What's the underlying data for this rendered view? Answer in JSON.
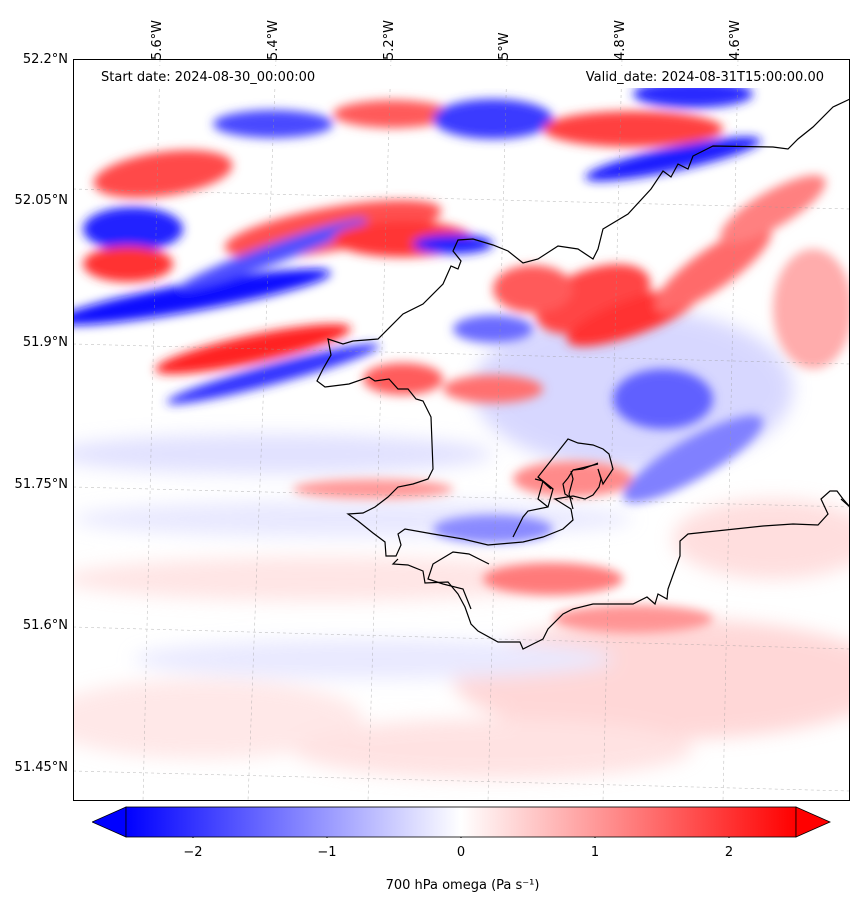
{
  "map": {
    "start_date_label": "Start date: 2024-08-30_00:00:00",
    "valid_date_label": "Valid_date: 2024-08-31T15:00:00.00",
    "lon_ticks": [
      "5.6°W",
      "5.4°W",
      "5.2°W",
      "5°W",
      "4.8°W",
      "4.6°W"
    ],
    "lat_ticks": [
      "52.2°N",
      "52.05°N",
      "51.9°N",
      "51.75°N",
      "51.6°N",
      "51.45°N"
    ],
    "variable": "700 hPa omega",
    "colormap": "bwr",
    "colors": {
      "negative": "#0000ff",
      "zero": "#ffffff",
      "positive": "#ff0000",
      "coast": "#000000"
    }
  },
  "colorbar": {
    "label": "700 hPa omega (Pa s⁻¹)",
    "ticks": [
      "−2",
      "−1",
      "0",
      "1",
      "2"
    ],
    "range": [
      -2.5,
      2.5
    ],
    "extend": "both"
  }
}
